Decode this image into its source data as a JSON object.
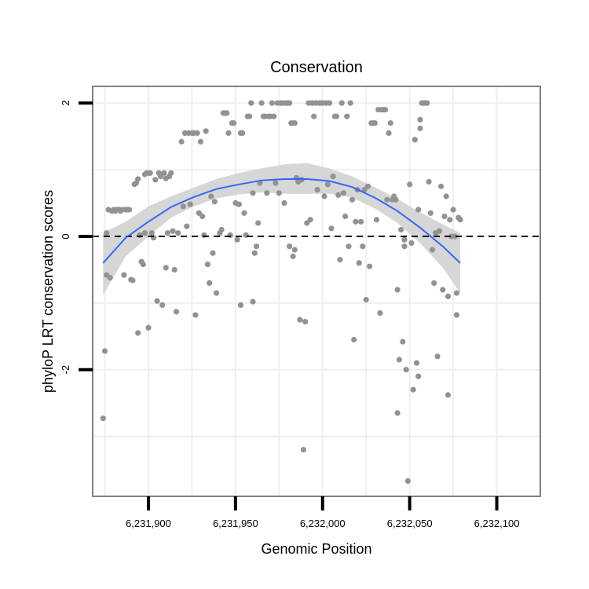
{
  "chart_data": {
    "type": "scatter",
    "title": "Conservation",
    "xlabel": "Genomic Position",
    "ylabel": "phyloP LRT conservation scores",
    "xlim": [
      6231868,
      6232125
    ],
    "ylim": [
      -3.9,
      2.25
    ],
    "x_ticks": [
      6231900,
      6231950,
      6232000,
      6232050,
      6232100
    ],
    "x_tick_labels": [
      "6,231,900",
      "6,231,950",
      "6,232,000",
      "6,232,050",
      "6,232,100"
    ],
    "y_ticks": [
      2,
      0,
      -2
    ],
    "y_tick_labels": [
      "2",
      "0",
      "-2"
    ],
    "reference_line": {
      "y": 0,
      "style": "dashed",
      "color": "#000000"
    },
    "grid": true,
    "colors": {
      "points": "#929292",
      "smooth_line": "#3366ff",
      "confidence_band": "#d6d6d6",
      "frame": "#808080",
      "grid": "#efefef"
    },
    "points": [
      [
        6231874,
        -2.73
      ],
      [
        6231875,
        -1.72
      ],
      [
        6231876,
        0.05
      ],
      [
        6231876,
        -0.58
      ],
      [
        6231877,
        0.4
      ],
      [
        6231878,
        -0.62
      ],
      [
        6231879,
        0.38
      ],
      [
        6231880,
        0.4
      ],
      [
        6231881,
        0.38
      ],
      [
        6231882,
        0.4
      ],
      [
        6231883,
        0.4
      ],
      [
        6231884,
        0.38
      ],
      [
        6231885,
        0.4
      ],
      [
        6231886,
        -0.58
      ],
      [
        6231887,
        0.4
      ],
      [
        6231888,
        0.4
      ],
      [
        6231889,
        0.4
      ],
      [
        6231890,
        -0.65
      ],
      [
        6231891,
        -0.66
      ],
      [
        6231892,
        0.78
      ],
      [
        6231893,
        0.8
      ],
      [
        6231894,
        -1.45
      ],
      [
        6231894,
        0.86
      ],
      [
        6231895,
        0.02
      ],
      [
        6231896,
        -0.38
      ],
      [
        6231897,
        -0.42
      ],
      [
        6231898,
        0.93
      ],
      [
        6231898,
        0.05
      ],
      [
        6231899,
        0.95
      ],
      [
        6231900,
        -1.37
      ],
      [
        6231900,
        0.95
      ],
      [
        6231901,
        0.95
      ],
      [
        6231902,
        0.05
      ],
      [
        6231903,
        -0.02
      ],
      [
        6231904,
        0.85
      ],
      [
        6231905,
        -0.97
      ],
      [
        6231906,
        0.95
      ],
      [
        6231907,
        0.9
      ],
      [
        6231908,
        -1.03
      ],
      [
        6231909,
        0.95
      ],
      [
        6231910,
        0.87
      ],
      [
        6231910,
        -0.47
      ],
      [
        6231911,
        0.05
      ],
      [
        6231912,
        0.9
      ],
      [
        6231913,
        0.95
      ],
      [
        6231914,
        0.08
      ],
      [
        6231915,
        -0.5
      ],
      [
        6231916,
        -1.13
      ],
      [
        6231917,
        0.05
      ],
      [
        6231919,
        1.42
      ],
      [
        6231920,
        0.45
      ],
      [
        6231921,
        1.55
      ],
      [
        6231922,
        0.15
      ],
      [
        6231923,
        1.55
      ],
      [
        6231924,
        0.48
      ],
      [
        6231925,
        1.55
      ],
      [
        6231926,
        1.55
      ],
      [
        6231927,
        -1.18
      ],
      [
        6231928,
        1.55
      ],
      [
        6231929,
        0.35
      ],
      [
        6231930,
        1.42
      ],
      [
        6231931,
        0.3
      ],
      [
        6231932,
        0.02
      ],
      [
        6231933,
        1.58
      ],
      [
        6231934,
        -0.42
      ],
      [
        6231935,
        -0.7
      ],
      [
        6231936,
        0.6
      ],
      [
        6231937,
        -0.25
      ],
      [
        6231938,
        0.52
      ],
      [
        6231939,
        -0.85
      ],
      [
        6231941,
        0.05
      ],
      [
        6231942,
        0.1
      ],
      [
        6231943,
        1.85
      ],
      [
        6231944,
        1.85
      ],
      [
        6231945,
        1.85
      ],
      [
        6231946,
        1.55
      ],
      [
        6231947,
        0.02
      ],
      [
        6231948,
        1.7
      ],
      [
        6231949,
        1.7
      ],
      [
        6231950,
        0.5
      ],
      [
        6231951,
        -0.05
      ],
      [
        6231952,
        0.48
      ],
      [
        6231953,
        -1.03
      ],
      [
        6231953,
        1.55
      ],
      [
        6231954,
        1.55
      ],
      [
        6231955,
        0.35
      ],
      [
        6231956,
        0.02
      ],
      [
        6231957,
        1.8
      ],
      [
        6231958,
        1.8
      ],
      [
        6231959,
        2.0
      ],
      [
        6231960,
        0.65
      ],
      [
        6231960,
        -0.98
      ],
      [
        6231961,
        -0.25
      ],
      [
        6231962,
        -0.15
      ],
      [
        6231963,
        0.2
      ],
      [
        6231964,
        0.8
      ],
      [
        6231965,
        2.0
      ],
      [
        6231966,
        1.8
      ],
      [
        6231967,
        1.8
      ],
      [
        6231968,
        0.65
      ],
      [
        6231969,
        1.8
      ],
      [
        6231970,
        1.8
      ],
      [
        6231971,
        2.0
      ],
      [
        6231972,
        1.8
      ],
      [
        6231973,
        0.8
      ],
      [
        6231974,
        2.0
      ],
      [
        6231975,
        0.65
      ],
      [
        6231976,
        2.0
      ],
      [
        6231977,
        2.0
      ],
      [
        6231978,
        0.5
      ],
      [
        6231979,
        2.0
      ],
      [
        6231980,
        2.0
      ],
      [
        6231981,
        2.0
      ],
      [
        6231981,
        -0.15
      ],
      [
        6231982,
        1.7
      ],
      [
        6231983,
        1.7
      ],
      [
        6231983,
        -0.3
      ],
      [
        6231984,
        1.7
      ],
      [
        6231984,
        -0.2
      ],
      [
        6231985,
        0.88
      ],
      [
        6231986,
        0.82
      ],
      [
        6231987,
        -1.25
      ],
      [
        6231988,
        0.85
      ],
      [
        6231989,
        -3.2
      ],
      [
        6231990,
        -1.28
      ],
      [
        6231991,
        0.2
      ],
      [
        6231992,
        2.0
      ],
      [
        6231993,
        0.25
      ],
      [
        6231994,
        2.0
      ],
      [
        6231995,
        1.8
      ],
      [
        6231996,
        2.0
      ],
      [
        6231997,
        0.7
      ],
      [
        6231998,
        2.0
      ],
      [
        6231999,
        2.0
      ],
      [
        6232000,
        2.0
      ],
      [
        6232001,
        0.6
      ],
      [
        6232002,
        2.0
      ],
      [
        6232003,
        0.78
      ],
      [
        6232004,
        2.0
      ],
      [
        6232005,
        0.12
      ],
      [
        6232006,
        0.9
      ],
      [
        6232007,
        1.8
      ],
      [
        6232008,
        1.8
      ],
      [
        6232009,
        0.62
      ],
      [
        6232010,
        -0.35
      ],
      [
        6232011,
        2.0
      ],
      [
        6232012,
        0.65
      ],
      [
        6232013,
        0.3
      ],
      [
        6232014,
        1.8
      ],
      [
        6232015,
        -0.15
      ],
      [
        6232016,
        2.0
      ],
      [
        6232017,
        0.55
      ],
      [
        6232018,
        -1.55
      ],
      [
        6232019,
        0.22
      ],
      [
        6232020,
        0.7
      ],
      [
        6232021,
        -0.4
      ],
      [
        6232022,
        0.22
      ],
      [
        6232023,
        -0.15
      ],
      [
        6232024,
        0.7
      ],
      [
        6232025,
        -0.95
      ],
      [
        6232026,
        0.75
      ],
      [
        6232027,
        -0.45
      ],
      [
        6232028,
        1.7
      ],
      [
        6232029,
        1.7
      ],
      [
        6232030,
        1.7
      ],
      [
        6232031,
        0.25
      ],
      [
        6232032,
        1.9
      ],
      [
        6232033,
        -1.15
      ],
      [
        6232034,
        1.9
      ],
      [
        6232035,
        1.9
      ],
      [
        6232036,
        1.9
      ],
      [
        6232037,
        0.55
      ],
      [
        6232038,
        1.55
      ],
      [
        6232039,
        1.7
      ],
      [
        6232040,
        0.55
      ],
      [
        6232041,
        0.6
      ],
      [
        6232042,
        0.55
      ],
      [
        6232043,
        -0.8
      ],
      [
        6232043,
        -2.65
      ],
      [
        6232044,
        -1.85
      ],
      [
        6232045,
        0.1
      ],
      [
        6232046,
        -1.58
      ],
      [
        6232047,
        -0.05
      ],
      [
        6232047,
        -0.15
      ],
      [
        6232048,
        -2.0
      ],
      [
        6232049,
        -3.67
      ],
      [
        6232050,
        0.78
      ],
      [
        6232051,
        -0.1
      ],
      [
        6232052,
        -2.3
      ],
      [
        6232053,
        1.45
      ],
      [
        6232054,
        -1.9
      ],
      [
        6232055,
        0.4
      ],
      [
        6232055,
        -2.1
      ],
      [
        6232056,
        1.62
      ],
      [
        6232056,
        1.75
      ],
      [
        6232057,
        2.0
      ],
      [
        6232058,
        2.0
      ],
      [
        6232059,
        2.0
      ],
      [
        6232060,
        2.0
      ],
      [
        6232061,
        0.82
      ],
      [
        6232062,
        0.35
      ],
      [
        6232063,
        -0.2
      ],
      [
        6232064,
        -0.7
      ],
      [
        6232065,
        0.05
      ],
      [
        6232066,
        -1.8
      ],
      [
        6232067,
        0.08
      ],
      [
        6232068,
        0.75
      ],
      [
        6232069,
        -0.8
      ],
      [
        6232070,
        0.3
      ],
      [
        6232071,
        0.6
      ],
      [
        6232072,
        -0.9
      ],
      [
        6232072,
        -2.38
      ],
      [
        6232073,
        0.25
      ],
      [
        6232074,
        0.0
      ],
      [
        6232075,
        0.4
      ],
      [
        6232076,
        0.0
      ],
      [
        6232077,
        -1.18
      ],
      [
        6232077,
        -0.85
      ],
      [
        6232078,
        0.28
      ],
      [
        6232079,
        0.25
      ]
    ],
    "smooth": {
      "x": [
        6231874,
        6231887,
        6231900,
        6231913,
        6231926,
        6231939,
        6231952,
        6231965,
        6231978,
        6231991,
        6232004,
        6232017,
        6232030,
        6232043,
        6232056,
        6232069,
        6232079
      ],
      "fit": [
        -0.4,
        -0.02,
        0.22,
        0.44,
        0.59,
        0.71,
        0.78,
        0.84,
        0.86,
        0.86,
        0.83,
        0.74,
        0.58,
        0.38,
        0.13,
        -0.15,
        -0.4
      ],
      "lower": [
        -0.88,
        -0.3,
        0.0,
        0.28,
        0.45,
        0.57,
        0.63,
        0.66,
        0.64,
        0.64,
        0.64,
        0.58,
        0.42,
        0.2,
        -0.1,
        -0.47,
        -0.85
      ],
      "upper": [
        0.05,
        0.22,
        0.45,
        0.6,
        0.73,
        0.86,
        0.95,
        1.02,
        1.08,
        1.1,
        1.02,
        0.9,
        0.74,
        0.56,
        0.36,
        0.18,
        0.05
      ]
    }
  }
}
